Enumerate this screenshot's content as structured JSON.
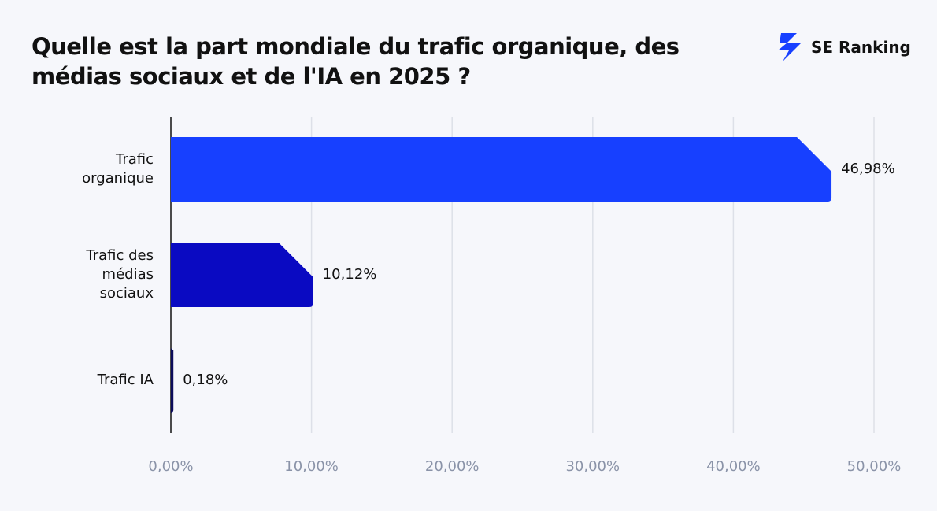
{
  "title": "Quelle est la part mondiale du trafic organique, des médias sociaux et de l'IA en 2025 ?",
  "brand": "SE Ranking",
  "chart_data": {
    "type": "bar",
    "orientation": "horizontal",
    "categories": [
      "Trafic organique",
      "Trafic des médias sociaux",
      "Trafic IA"
    ],
    "values": [
      46.98,
      10.12,
      0.18
    ],
    "value_labels": [
      "46,98%",
      "10,12%",
      "0,18%"
    ],
    "colors": [
      "#1740ff",
      "#0a0ac2",
      "#0b0b5a"
    ],
    "xlim": [
      0,
      50
    ],
    "xticks": [
      {
        "value": 0,
        "label": "0,00%"
      },
      {
        "value": 10,
        "label": "10,00%"
      },
      {
        "value": 20,
        "label": "20,00%"
      },
      {
        "value": 30,
        "label": "30,00%"
      },
      {
        "value": 40,
        "label": "40,00%"
      },
      {
        "value": 50,
        "label": "50,00%"
      }
    ],
    "grid": true
  }
}
